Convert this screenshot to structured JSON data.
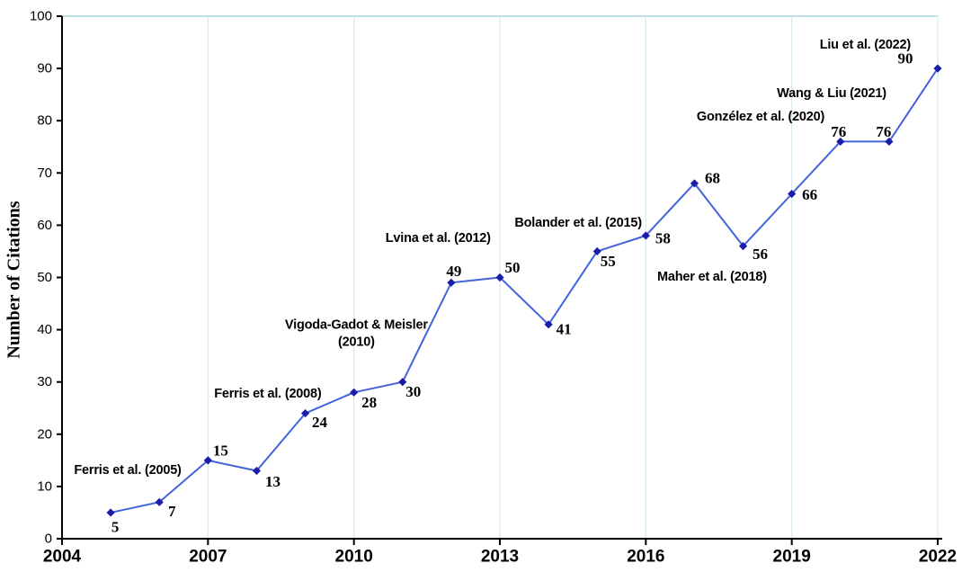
{
  "chart_data": {
    "type": "line",
    "title": "",
    "xlabel": "",
    "ylabel": "Number of Citations",
    "xlim": [
      2004,
      2022
    ],
    "ylim": [
      0,
      100
    ],
    "x_ticks": [
      2004,
      2007,
      2010,
      2013,
      2016,
      2019,
      2022
    ],
    "y_ticks": [
      0,
      10,
      20,
      30,
      40,
      50,
      60,
      70,
      80,
      90,
      100
    ],
    "grid": "vertical-gridlines-at-x-ticks-plus-top-border",
    "legend": "none",
    "x": [
      2005,
      2006,
      2007,
      2008,
      2009,
      2010,
      2011,
      2012,
      2013,
      2014,
      2015,
      2016,
      2017,
      2018,
      2019,
      2020,
      2021,
      2022
    ],
    "values": [
      5,
      7,
      15,
      13,
      24,
      28,
      30,
      49,
      50,
      41,
      55,
      58,
      68,
      56,
      66,
      76,
      76,
      90
    ],
    "marker": "diamond",
    "colors": {
      "line": "#4263dc",
      "marker": "#1c1caa",
      "grid": "#d9ecef",
      "grid_top": "#a6d5dc",
      "axis": "#000000",
      "text": "#000000"
    },
    "annotations": [
      {
        "lines": [
          "Ferris et al. (2005)"
        ],
        "x": 2005.35,
        "y": 13.1
      },
      {
        "lines": [
          "Ferris et al. (2008)"
        ],
        "x": 2008.23,
        "y": 27.7
      },
      {
        "lines": [
          "Vigoda-Gadot & Meisler",
          "(2010)"
        ],
        "x": 2010.05,
        "y": 39.2
      },
      {
        "lines": [
          "Lvina et al. (2012)"
        ],
        "x": 2011.73,
        "y": 57.5
      },
      {
        "lines": [
          "Bolander et al. (2015)"
        ],
        "x": 2014.61,
        "y": 60.4
      },
      {
        "lines": [
          "Maher et al. (2018)"
        ],
        "x": 2017.36,
        "y": 50.1
      },
      {
        "lines": [
          "Gonzélez et al. (2020)"
        ],
        "x": 2018.36,
        "y": 80.7
      },
      {
        "lines": [
          "Wang & Liu (2021)"
        ],
        "x": 2019.82,
        "y": 85.2
      },
      {
        "lines": [
          "Liu et al. (2022)"
        ],
        "x": 2020.51,
        "y": 94.5
      }
    ]
  }
}
